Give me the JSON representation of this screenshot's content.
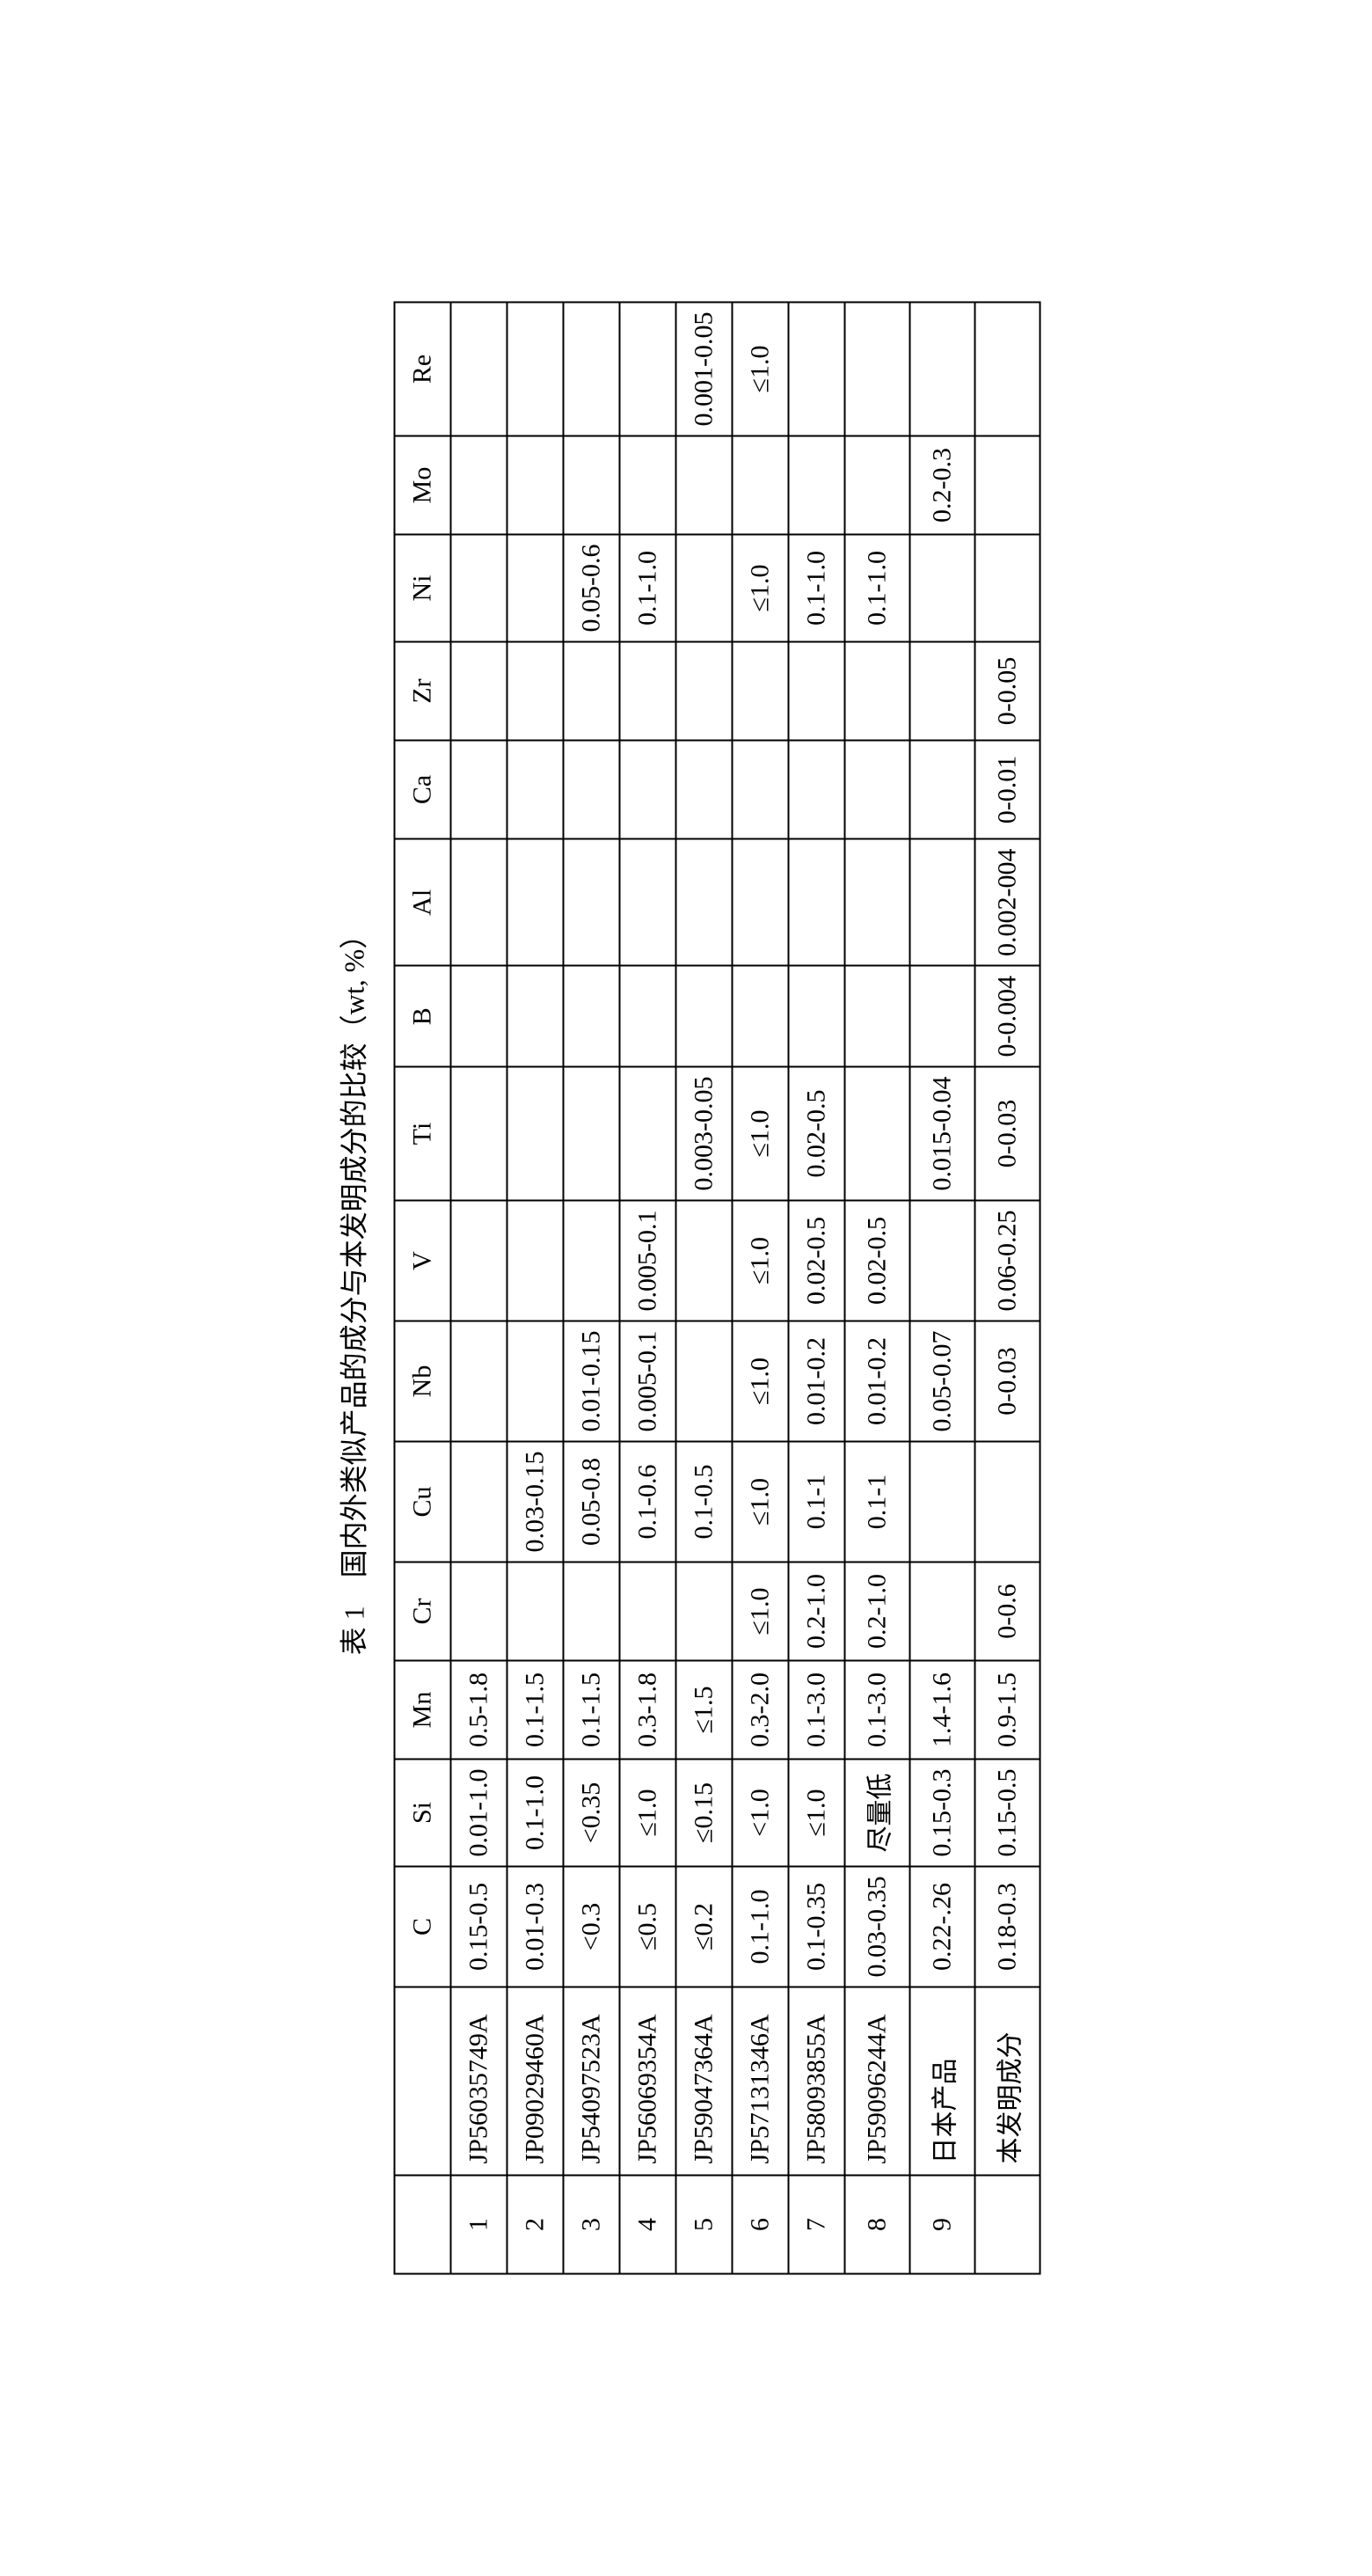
{
  "caption": "表 1　国内外类似产品的成分与本发明成分的比较（wt, %）",
  "columns": [
    "",
    "",
    "C",
    "Si",
    "Mn",
    "Cr",
    "Cu",
    "Nb",
    "V",
    "Ti",
    "B",
    "Al",
    "Ca",
    "Zr",
    "Ni",
    "Mo",
    "Re"
  ],
  "rows": [
    {
      "idx": "1",
      "name": "JP56035749A",
      "C": "0.15-0.5",
      "Si": "0.01-1.0",
      "Mn": "0.5-1.8",
      "Cr": "",
      "Cu": "",
      "Nb": "",
      "V": "",
      "Ti": "",
      "B": "",
      "Al": "",
      "Ca": "",
      "Zr": "",
      "Ni": "",
      "Mo": "",
      "Re": ""
    },
    {
      "idx": "2",
      "name": "JP09029460A",
      "C": "0.01-0.3",
      "Si": "0.1-1.0",
      "Mn": "0.1-1.5",
      "Cr": "",
      "Cu": "0.03-0.15",
      "Nb": "",
      "V": "",
      "Ti": "",
      "B": "",
      "Al": "",
      "Ca": "",
      "Zr": "",
      "Ni": "",
      "Mo": "",
      "Re": ""
    },
    {
      "idx": "3",
      "name": "JP54097523A",
      "C": "<0.3",
      "Si": "<0.35",
      "Mn": "0.1-1.5",
      "Cr": "",
      "Cu": "0.05-0.8",
      "Nb": "0.01-0.15",
      "V": "",
      "Ti": "",
      "B": "",
      "Al": "",
      "Ca": "",
      "Zr": "",
      "Ni": "0.05-0.6",
      "Mo": "",
      "Re": ""
    },
    {
      "idx": "4",
      "name": "JP56069354A",
      "C": "≤0.5",
      "Si": "≤1.0",
      "Mn": "0.3-1.8",
      "Cr": "",
      "Cu": "0.1-0.6",
      "Nb": "0.005-0.1",
      "V": "0.005-0.1",
      "Ti": "",
      "B": "",
      "Al": "",
      "Ca": "",
      "Zr": "",
      "Ni": "0.1-1.0",
      "Mo": "",
      "Re": ""
    },
    {
      "idx": "5",
      "name": "JP59047364A",
      "C": "≤0.2",
      "Si": "≤0.15",
      "Mn": "≤1.5",
      "Cr": "",
      "Cu": "0.1-0.5",
      "Nb": "",
      "V": "",
      "Ti": "0.003-0.05",
      "B": "",
      "Al": "",
      "Ca": "",
      "Zr": "",
      "Ni": "",
      "Mo": "",
      "Re": "0.001-0.05"
    },
    {
      "idx": "6",
      "name": "JP57131346A",
      "C": "0.1-1.0",
      "Si": "<1.0",
      "Mn": "0.3-2.0",
      "Cr": "≤1.0",
      "Cu": "≤1.0",
      "Nb": "≤1.0",
      "V": "≤1.0",
      "Ti": "≤1.0",
      "B": "",
      "Al": "",
      "Ca": "",
      "Zr": "",
      "Ni": "≤1.0",
      "Mo": "",
      "Re": "≤1.0"
    },
    {
      "idx": "7",
      "name": "JP58093855A",
      "C": "0.1-0.35",
      "Si": "≤1.0",
      "Mn": "0.1-3.0",
      "Cr": "0.2-1.0",
      "Cu": "0.1-1",
      "Nb": "0.01-0.2",
      "V": "0.02-0.5",
      "Ti": "0.02-0.5",
      "B": "",
      "Al": "",
      "Ca": "",
      "Zr": "",
      "Ni": "0.1-1.0",
      "Mo": "",
      "Re": ""
    },
    {
      "idx": "8",
      "name": "JP59096244A",
      "C": "0.03-0.35",
      "Si": "尽量低",
      "Mn": "0.1-3.0",
      "Cr": "0.2-1.0",
      "Cu": "0.1-1",
      "Nb": "0.01-0.2",
      "V": "0.02-0.5",
      "Ti": "",
      "B": "",
      "Al": "",
      "Ca": "",
      "Zr": "",
      "Ni": "0.1-1.0",
      "Mo": "",
      "Re": ""
    },
    {
      "idx": "9",
      "name": "日本产品",
      "C": "0.22-.26",
      "Si": "0.15-0.3",
      "Mn": "1.4-1.6",
      "Cr": "",
      "Cu": "",
      "Nb": "0.05-0.07",
      "V": "",
      "Ti": "0.015-0.04",
      "B": "",
      "Al": "",
      "Ca": "",
      "Zr": "",
      "Ni": "",
      "Mo": "0.2-0.3",
      "Re": ""
    },
    {
      "idx": "",
      "name": "本发明成分",
      "C": "0.18-0.3",
      "Si": "0.15-0.5",
      "Mn": "0.9-1.5",
      "Cr": "0-0.6",
      "Cu": "",
      "Nb": "0-0.03",
      "V": "0.06-0.25",
      "Ti": "0-0.03",
      "B": "0-0.004",
      "Al": "0.002-004",
      "Ca": "0-0.01",
      "Zr": "0-0.05",
      "Ni": "",
      "Mo": "",
      "Re": ""
    }
  ]
}
